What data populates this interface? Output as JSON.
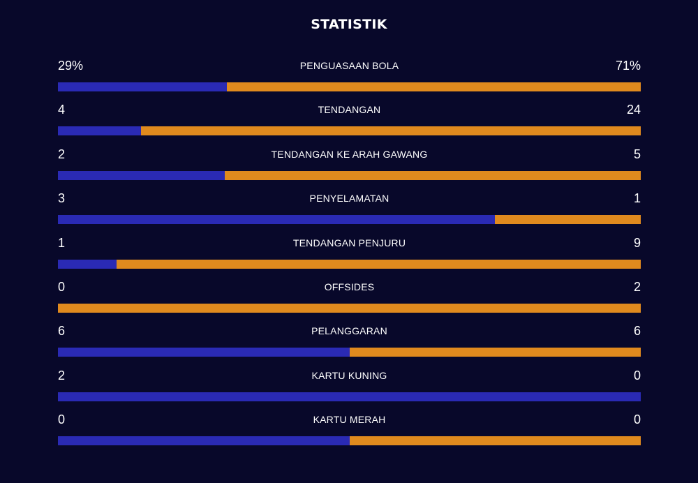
{
  "title": "STATISTIK",
  "colors": {
    "background": "#08082a",
    "home_bar": "#2a2ab4",
    "away_bar": "#e08a1e",
    "text": "#ffffff"
  },
  "stats": [
    {
      "label": "PENGUASAAN BOLA",
      "home": "29%",
      "away": "71%",
      "home_share": 0.29
    },
    {
      "label": "TENDANGAN",
      "home": "4",
      "away": "24",
      "home_share": 0.1429
    },
    {
      "label": "TENDANGAN KE ARAH GAWANG",
      "home": "2",
      "away": "5",
      "home_share": 0.2857
    },
    {
      "label": "PENYELAMATAN",
      "home": "3",
      "away": "1",
      "home_share": 0.75
    },
    {
      "label": "TENDANGAN PENJURU",
      "home": "1",
      "away": "9",
      "home_share": 0.1
    },
    {
      "label": "OFFSIDES",
      "home": "0",
      "away": "2",
      "home_share": 0
    },
    {
      "label": "PELANGGARAN",
      "home": "6",
      "away": "6",
      "home_share": 0.5
    },
    {
      "label": "KARTU KUNING",
      "home": "2",
      "away": "0",
      "home_share": 1
    },
    {
      "label": "KARTU MERAH",
      "home": "0",
      "away": "0",
      "home_share": 0.5
    }
  ]
}
